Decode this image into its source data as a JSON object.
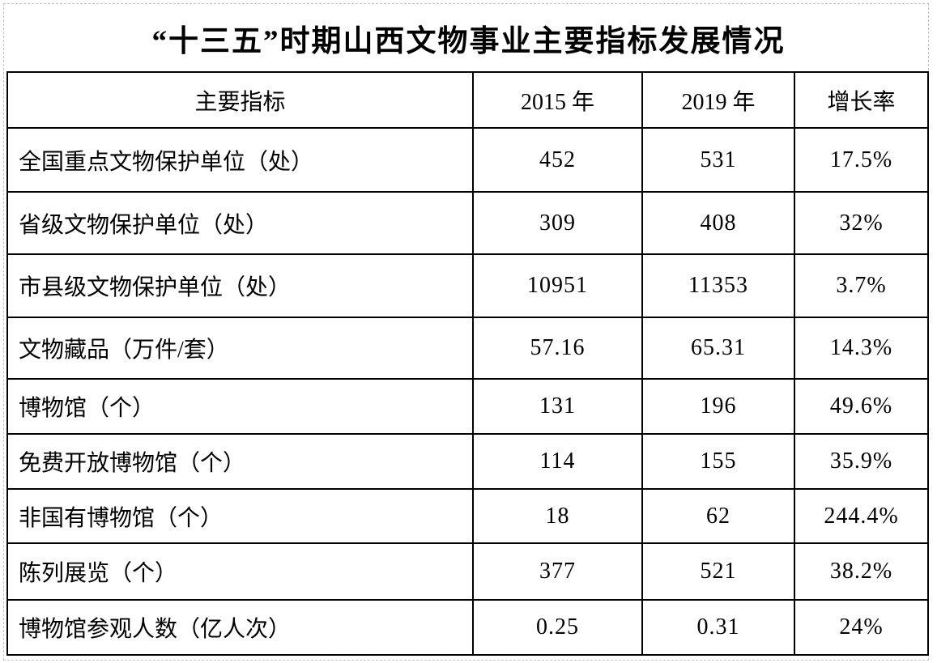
{
  "page": {
    "title": "“十三五”时期山西文物事业主要指标发展情况",
    "colors": {
      "background": "#ffffff",
      "text": "#000000",
      "table_border": "#000000",
      "page_frame_border": "#c3c3c3"
    }
  },
  "table": {
    "headers": {
      "indicator": "主要指标",
      "y2015": "2015 年",
      "y2019": "2019 年",
      "growth": "增长率"
    },
    "rows": [
      {
        "indicator": "全国重点文物保护单位（处）",
        "y2015": "452",
        "y2019": "531",
        "growth": "17.5%"
      },
      {
        "indicator": "省级文物保护单位（处）",
        "y2015": "309",
        "y2019": "408",
        "growth": "32%"
      },
      {
        "indicator": "市县级文物保护单位（处）",
        "y2015": "10951",
        "y2019": "11353",
        "growth": "3.7%"
      },
      {
        "indicator": "文物藏品（万件/套）",
        "y2015": "57.16",
        "y2019": "65.31",
        "growth": "14.3%"
      },
      {
        "indicator": "博物馆（个）",
        "y2015": "131",
        "y2019": "196",
        "growth": "49.6%"
      },
      {
        "indicator": "免费开放博物馆（个）",
        "y2015": "114",
        "y2019": "155",
        "growth": "35.9%"
      },
      {
        "indicator": "非国有博物馆（个）",
        "y2015": "18",
        "y2019": "62",
        "growth": "244.4%"
      },
      {
        "indicator": "陈列展览（个）",
        "y2015": "377",
        "y2019": "521",
        "growth": "38.2%"
      },
      {
        "indicator": "博物馆参观人数（亿人次）",
        "y2015": "0.25",
        "y2019": "0.31",
        "growth": "24%"
      }
    ]
  }
}
